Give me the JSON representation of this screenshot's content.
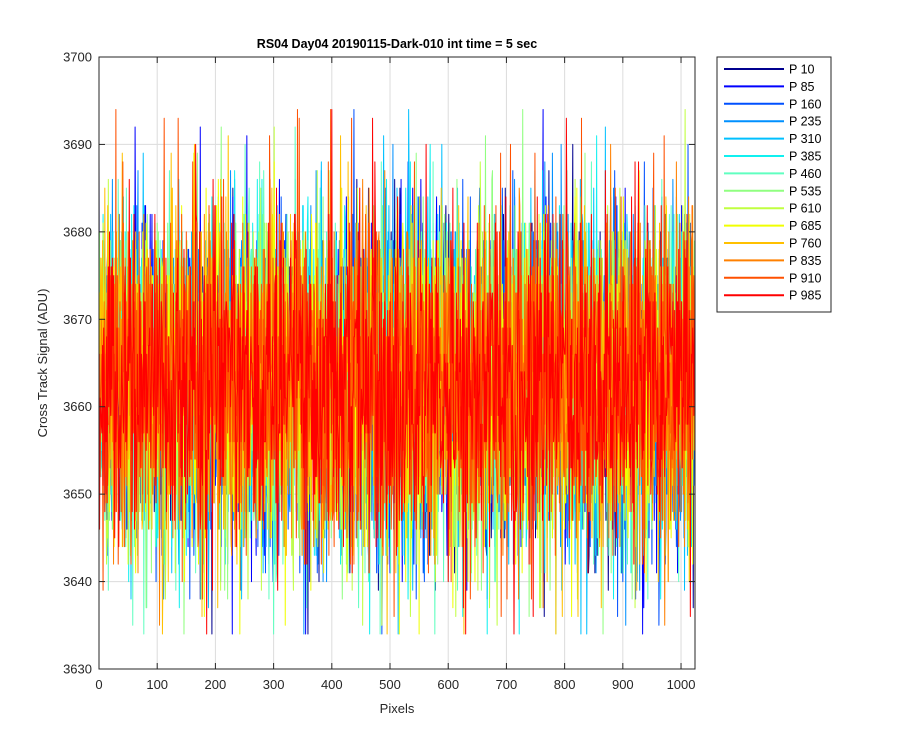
{
  "chart_data": {
    "type": "line",
    "title": "RS04 Day04 20190115-Dark-010 int time = 5 sec",
    "xlabel": "Pixels",
    "ylabel": "Cross Track Signal (ADU)",
    "xlim": [
      0,
      1024
    ],
    "ylim": [
      3630,
      3700
    ],
    "xticks": [
      0,
      100,
      200,
      300,
      400,
      500,
      600,
      700,
      800,
      900,
      1000
    ],
    "yticks": [
      3630,
      3640,
      3650,
      3660,
      3670,
      3680,
      3690,
      3700
    ],
    "grid": true,
    "legend_location": "outside-top-right",
    "series_noise": {
      "n_points": 1024,
      "mean": 3663,
      "typical_range": [
        3645,
        3685
      ],
      "observed_min": 3634,
      "observed_max": 3694
    },
    "series": [
      {
        "name": "P 10",
        "color": "#00008f"
      },
      {
        "name": "P 85",
        "color": "#0000ff"
      },
      {
        "name": "P 160",
        "color": "#0050ff"
      },
      {
        "name": "P 235",
        "color": "#0090ff"
      },
      {
        "name": "P 310",
        "color": "#00c0ff"
      },
      {
        "name": "P 385",
        "color": "#10f0f0"
      },
      {
        "name": "P 460",
        "color": "#60ffc0"
      },
      {
        "name": "P 535",
        "color": "#90ff80"
      },
      {
        "name": "P 610",
        "color": "#c0ff40"
      },
      {
        "name": "P 685",
        "color": "#f0ff00"
      },
      {
        "name": "P 760",
        "color": "#ffc000"
      },
      {
        "name": "P 835",
        "color": "#ff8000"
      },
      {
        "name": "P 910",
        "color": "#ff5000"
      },
      {
        "name": "P 985",
        "color": "#ff0000"
      }
    ]
  }
}
